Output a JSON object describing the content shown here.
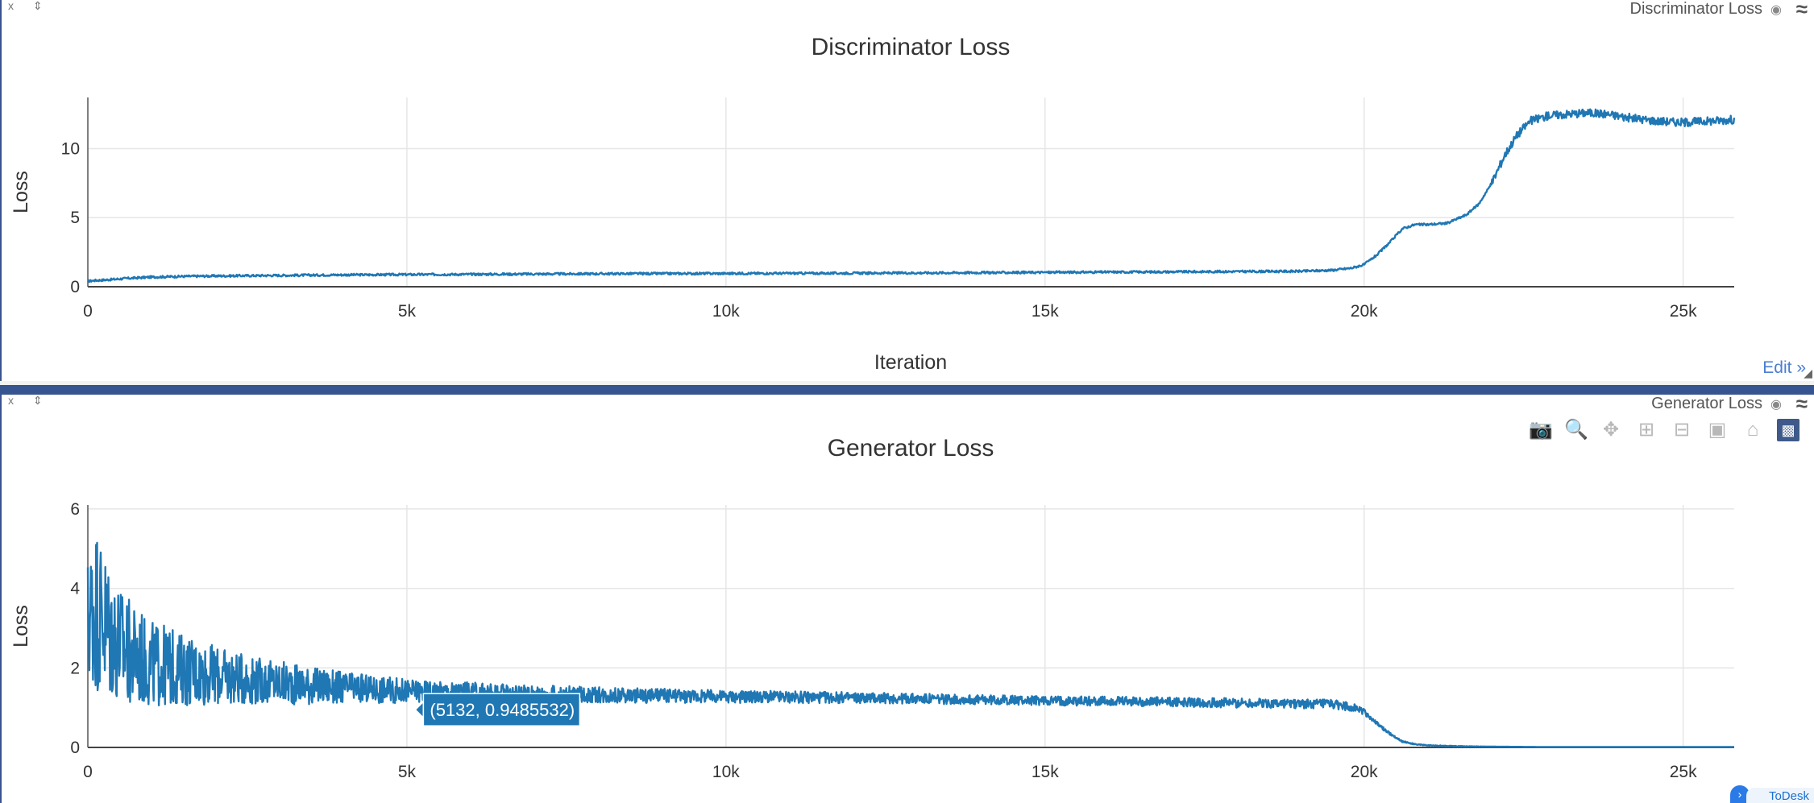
{
  "panes": [
    {
      "ctrl": "x ⇕",
      "title": "Discriminator Loss"
    },
    {
      "ctrl": "x ⇕",
      "title": "Generator Loss"
    }
  ],
  "edit_label": "Edit »",
  "todesk_label": "ToDesk",
  "colors": {
    "series": "#1f77b4",
    "divider": "#36548f",
    "edit": "#4a7fd1"
  },
  "modebar_icons": [
    "camera-icon",
    "zoom-icon",
    "pan-icon",
    "zoom-in-icon",
    "zoom-out-icon",
    "autoscale-icon",
    "reset-axes-icon",
    "plotly-logo-icon"
  ],
  "chart_data": [
    {
      "type": "line",
      "title": "Discriminator Loss",
      "xlabel": "Iteration",
      "ylabel": "Loss",
      "xlim": [
        0,
        25800
      ],
      "ylim": [
        0,
        13.7
      ],
      "xticks": [
        {
          "v": 0,
          "label": "0"
        },
        {
          "v": 5000,
          "label": "5k"
        },
        {
          "v": 10000,
          "label": "10k"
        },
        {
          "v": 15000,
          "label": "15k"
        },
        {
          "v": 20000,
          "label": "20k"
        },
        {
          "v": 25000,
          "label": "25k"
        }
      ],
      "yticks": [
        {
          "v": 0,
          "label": "0"
        },
        {
          "v": 5,
          "label": "5"
        },
        {
          "v": 10,
          "label": "10"
        }
      ],
      "grid": true,
      "series": [
        {
          "x": [
            0,
            100,
            300,
            600,
            1000,
            1500,
            2000,
            3000,
            4000,
            5000,
            6000,
            7000,
            8000,
            9000,
            10000,
            11000,
            12000,
            13000,
            14000,
            15000,
            16000,
            17000,
            18000,
            19000,
            19500,
            19800,
            20000,
            20200,
            20400,
            20600,
            20800,
            21000,
            21300,
            21600,
            21800,
            22000,
            22200,
            22400,
            22600,
            22900,
            23200,
            23500,
            23800,
            24200,
            24600,
            25000,
            25400,
            25800
          ],
          "y": [
            0.4,
            0.45,
            0.5,
            0.6,
            0.7,
            0.75,
            0.78,
            0.82,
            0.86,
            0.88,
            0.9,
            0.92,
            0.94,
            0.95,
            0.96,
            0.97,
            0.98,
            1.0,
            1.02,
            1.04,
            1.06,
            1.08,
            1.1,
            1.12,
            1.2,
            1.35,
            1.6,
            2.3,
            3.2,
            4.2,
            4.5,
            4.5,
            4.6,
            5.2,
            6.0,
            7.5,
            9.5,
            11.0,
            12.0,
            12.4,
            12.5,
            12.6,
            12.5,
            12.2,
            12.0,
            11.9,
            12.0,
            12.1
          ]
        }
      ]
    },
    {
      "type": "line",
      "title": "Generator Loss",
      "xlabel": "",
      "ylabel": "Loss",
      "xlim": [
        0,
        25800
      ],
      "ylim": [
        0,
        6.1
      ],
      "xticks": [
        {
          "v": 0,
          "label": "0"
        },
        {
          "v": 5000,
          "label": "5k"
        },
        {
          "v": 10000,
          "label": "10k"
        },
        {
          "v": 15000,
          "label": "15k"
        },
        {
          "v": 20000,
          "label": "20k"
        },
        {
          "v": 25000,
          "label": "25k"
        }
      ],
      "yticks": [
        {
          "v": 0,
          "label": "0"
        },
        {
          "v": 2,
          "label": "2"
        },
        {
          "v": 4,
          "label": "4"
        },
        {
          "v": 6,
          "label": "6"
        }
      ],
      "grid": true,
      "tooltip": {
        "x": 5132,
        "y": 0.9485532,
        "label": "(5132, 0.9485532)"
      },
      "series": [
        {
          "x": [
            0,
            100,
            200,
            300,
            500,
            700,
            1000,
            1500,
            2000,
            2500,
            3000,
            4000,
            5000,
            6000,
            7000,
            8000,
            9000,
            10000,
            12000,
            14000,
            16000,
            18000,
            19000,
            19500,
            19800,
            20000,
            20200,
            20400,
            20600,
            20800,
            21000,
            21500,
            22000,
            23000,
            24000,
            25000,
            25800
          ],
          "y": [
            3.2,
            3.6,
            3.4,
            3.0,
            2.6,
            2.3,
            2.1,
            1.95,
            1.8,
            1.7,
            1.62,
            1.5,
            1.42,
            1.38,
            1.35,
            1.32,
            1.3,
            1.28,
            1.25,
            1.2,
            1.16,
            1.12,
            1.1,
            1.08,
            1.02,
            0.9,
            0.6,
            0.35,
            0.15,
            0.08,
            0.05,
            0.03,
            0.02,
            0.01,
            0.01,
            0.01,
            0.01
          ],
          "spread": [
            1.6,
            2.2,
            2.0,
            1.9,
            1.5,
            1.3,
            1.1,
            0.9,
            0.75,
            0.6,
            0.55,
            0.4,
            0.3,
            0.26,
            0.22,
            0.2,
            0.18,
            0.16,
            0.14,
            0.12,
            0.12,
            0.12,
            0.12,
            0.12,
            0.1,
            0.08,
            0.05,
            0.03,
            0.02,
            0.01,
            0.01,
            0.01,
            0.0,
            0.0,
            0.0,
            0.0,
            0.0
          ]
        }
      ]
    }
  ]
}
